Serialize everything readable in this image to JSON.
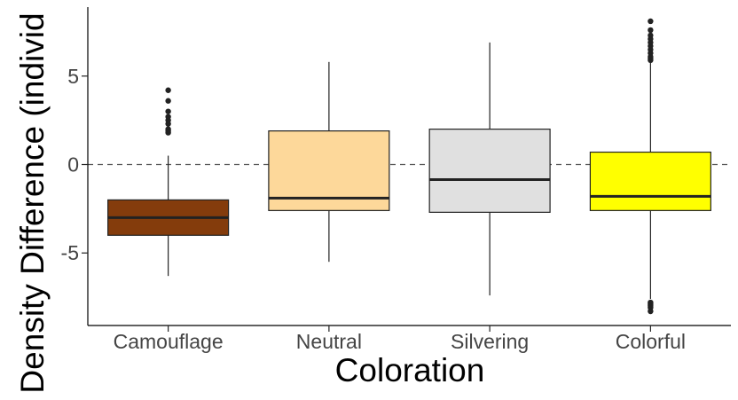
{
  "chart_data": {
    "type": "box",
    "xlabel": "Coloration",
    "ylabel": "Density Difference (individ",
    "ylim": [
      -9.1,
      8.9
    ],
    "yticks": [
      -5,
      0,
      5
    ],
    "ytick_labels": [
      "-5",
      "0",
      "5"
    ],
    "reference_line": 0,
    "grid": false,
    "legend": "none",
    "categories": [
      "Camouflage",
      "Neutral",
      "Silvering",
      "Colorful"
    ],
    "boxes": [
      {
        "name": "Camouflage",
        "color": "#843c0c",
        "whisker_low": -6.3,
        "q1": -4.0,
        "median": -3.0,
        "q3": -2.0,
        "whisker_high": 0.5,
        "outliers": [
          1.8,
          1.9,
          2.0,
          2.3,
          2.5,
          2.7,
          3.0,
          3.6,
          4.2
        ]
      },
      {
        "name": "Neutral",
        "color": "#fdd89a",
        "whisker_low": -5.5,
        "q1": -2.6,
        "median": -1.9,
        "q3": 1.9,
        "whisker_high": 5.8,
        "outliers": []
      },
      {
        "name": "Silvering",
        "color": "#e0e0e0",
        "whisker_low": -7.4,
        "q1": -2.7,
        "median": -0.85,
        "q3": 2.0,
        "whisker_high": 6.9,
        "outliers": []
      },
      {
        "name": "Colorful",
        "color": "#ffff00",
        "whisker_low": -7.6,
        "q1": -2.6,
        "median": -1.8,
        "q3": 0.7,
        "whisker_high": 5.8,
        "outliers": [
          -8.3,
          -8.1,
          -8.0,
          -7.9,
          -7.8,
          5.9,
          6.0,
          6.1,
          6.3,
          6.5,
          6.7,
          6.9,
          7.1,
          7.3,
          7.6,
          8.1
        ]
      }
    ]
  }
}
